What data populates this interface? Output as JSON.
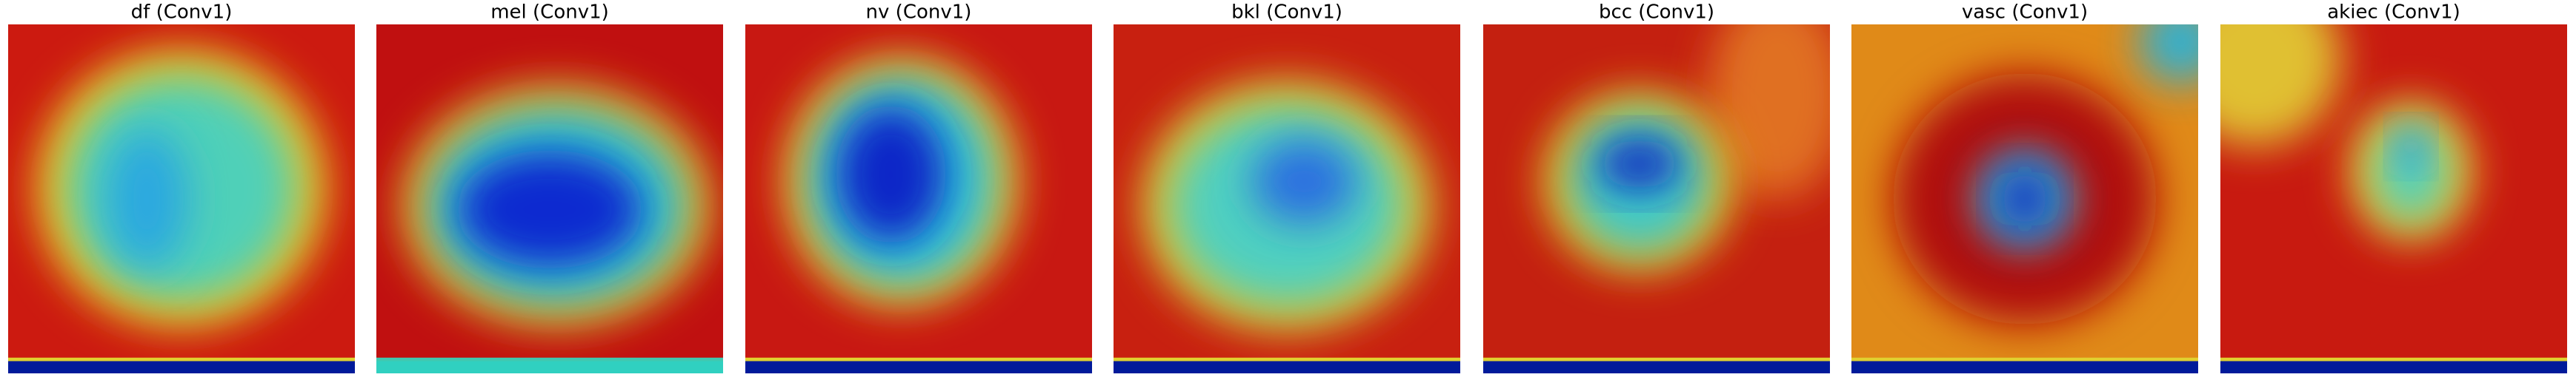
{
  "panels": [
    {
      "title": "df (Conv1)"
    },
    {
      "title": "mel (Conv1)"
    },
    {
      "title": "nv (Conv1)"
    },
    {
      "title": "bkl (Conv1)"
    },
    {
      "title": "bcc (Conv1)"
    },
    {
      "title": "vasc (Conv1)"
    },
    {
      "title": "akiec (Conv1)"
    }
  ]
}
